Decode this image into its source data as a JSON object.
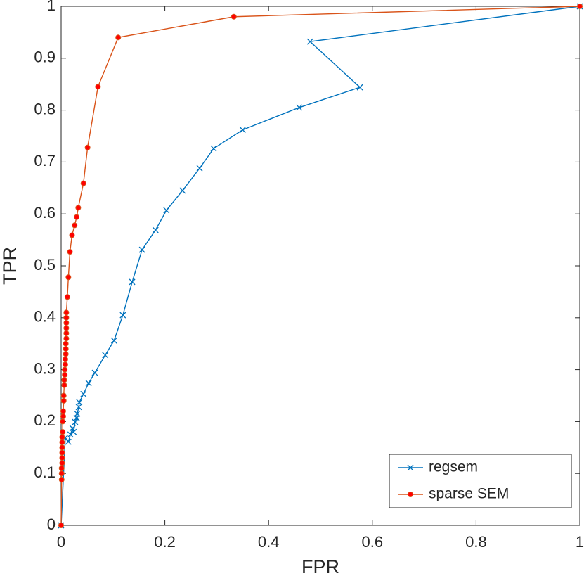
{
  "chart_data": {
    "type": "line",
    "xlabel": "FPR",
    "ylabel": "TPR",
    "xlim": [
      0,
      1
    ],
    "ylim": [
      0,
      1
    ],
    "xticks": [
      0,
      0.2,
      0.4,
      0.6,
      0.8,
      1
    ],
    "yticks": [
      0,
      0.1,
      0.2,
      0.3,
      0.4,
      0.5,
      0.6,
      0.7,
      0.8,
      0.9,
      1
    ],
    "grid": false,
    "legend": "lower right",
    "series": [
      {
        "name": "regsem",
        "color": "#0072bd",
        "marker": "x",
        "x": [
          0,
          0.008,
          0.014,
          0.018,
          0.022,
          0.024,
          0.027,
          0.03,
          0.031,
          0.034,
          0.035,
          0.043,
          0.053,
          0.065,
          0.085,
          0.102,
          0.119,
          0.137,
          0.156,
          0.182,
          0.203,
          0.234,
          0.267,
          0.294,
          0.35,
          0.459,
          0.576,
          0.48,
          1
        ],
        "values": [
          0,
          0.169,
          0.161,
          0.175,
          0.187,
          0.18,
          0.199,
          0.207,
          0.215,
          0.228,
          0.237,
          0.253,
          0.274,
          0.294,
          0.328,
          0.356,
          0.405,
          0.469,
          0.531,
          0.569,
          0.607,
          0.645,
          0.688,
          0.726,
          0.762,
          0.805,
          0.844,
          0.932,
          1
        ]
      },
      {
        "name": "sparse SEM",
        "color": "#d95319",
        "marker": "o",
        "marker_color": "#ff0000",
        "x": [
          0,
          0.001,
          0.001,
          0.001,
          0.002,
          0.002,
          0.002,
          0.002,
          0.002,
          0.002,
          0.003,
          0.003,
          0.004,
          0.004,
          0.005,
          0.005,
          0.006,
          0.006,
          0.007,
          0.007,
          0.008,
          0.008,
          0.009,
          0.009,
          0.009,
          0.01,
          0.01,
          0.01,
          0.01,
          0.01,
          0.01,
          0.012,
          0.014,
          0.017,
          0.021,
          0.026,
          0.03,
          0.033,
          0.043,
          0.051,
          0.071,
          0.11,
          0.333,
          1
        ],
        "values": [
          0,
          0.088,
          0.1,
          0.11,
          0.12,
          0.13,
          0.14,
          0.15,
          0.16,
          0.17,
          0.18,
          0.2,
          0.21,
          0.22,
          0.24,
          0.25,
          0.27,
          0.28,
          0.29,
          0.3,
          0.31,
          0.32,
          0.33,
          0.34,
          0.35,
          0.36,
          0.37,
          0.38,
          0.39,
          0.4,
          0.41,
          0.44,
          0.478,
          0.527,
          0.559,
          0.578,
          0.594,
          0.612,
          0.659,
          0.728,
          0.845,
          0.94,
          0.98,
          1
        ]
      }
    ]
  }
}
